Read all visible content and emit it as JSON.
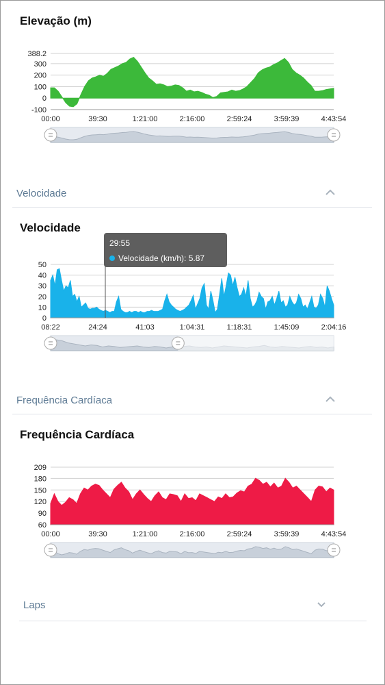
{
  "elevation": {
    "title": "Elevação (m)",
    "color": "#3cb93a",
    "chart_data": {
      "type": "area",
      "title": "Elevação (m)",
      "ylim": [
        -100,
        388.2
      ],
      "yticks": [
        "388.2",
        "300",
        "200",
        "100",
        "0",
        "-100"
      ],
      "ytick_values": [
        388.2,
        300,
        200,
        100,
        0,
        -100
      ],
      "xticks": [
        "00:00",
        "39:30",
        "1:21:00",
        "2:16:00",
        "2:59:24",
        "3:59:39",
        "4:43:54"
      ],
      "values": [
        90,
        90,
        60,
        10,
        -40,
        -70,
        -75,
        -50,
        30,
        100,
        150,
        175,
        185,
        200,
        190,
        215,
        250,
        265,
        280,
        300,
        310,
        340,
        355,
        320,
        270,
        220,
        175,
        150,
        120,
        125,
        115,
        100,
        105,
        115,
        110,
        90,
        60,
        70,
        55,
        60,
        50,
        35,
        25,
        5,
        15,
        45,
        50,
        55,
        70,
        60,
        65,
        80,
        100,
        135,
        170,
        220,
        245,
        260,
        270,
        290,
        305,
        325,
        345,
        310,
        250,
        220,
        200,
        175,
        140,
        110,
        60,
        60,
        65,
        75,
        80,
        85
      ]
    }
  },
  "velocidade_header": {
    "label": "Velocidade"
  },
  "velocidade": {
    "title": "Velocidade",
    "color": "#19b2ea",
    "tooltip": {
      "time": "29:55",
      "text": "Velocidade (km/h): 5.87"
    },
    "chart_data": {
      "type": "area",
      "title": "Velocidade",
      "ylim": [
        0,
        50
      ],
      "yticks": [
        "50",
        "40",
        "30",
        "20",
        "10",
        "0"
      ],
      "ytick_values": [
        50,
        40,
        30,
        20,
        10,
        0
      ],
      "xticks": [
        "08:22",
        "24:24",
        "41:03",
        "1:04:31",
        "1:18:31",
        "1:45:09",
        "2:04:16"
      ],
      "values": [
        35,
        40,
        30,
        45,
        46,
        35,
        25,
        30,
        28,
        35,
        20,
        22,
        15,
        20,
        10,
        12,
        14,
        9,
        8,
        9,
        9,
        10,
        8,
        7,
        6,
        7,
        6,
        5,
        6,
        6,
        15,
        20,
        8,
        6,
        5,
        5,
        6,
        5,
        6,
        6,
        5,
        6,
        5,
        5,
        6,
        6,
        7,
        6,
        6,
        6,
        7,
        8,
        16,
        22,
        15,
        12,
        10,
        8,
        7,
        6,
        7,
        8,
        10,
        12,
        16,
        21,
        8,
        13,
        18,
        28,
        32,
        12,
        8,
        25,
        16,
        5,
        8,
        22,
        37,
        20,
        30,
        42,
        40,
        30,
        38,
        28,
        20,
        22,
        28,
        20,
        35,
        18,
        10,
        12,
        16,
        24,
        20,
        18,
        8,
        15,
        16,
        20,
        12,
        18,
        25,
        14,
        16,
        10,
        12,
        20,
        15,
        12,
        14,
        22,
        18,
        10,
        12,
        8,
        14,
        20,
        10,
        9,
        12,
        22,
        18,
        10,
        30,
        25,
        18,
        12
      ]
    },
    "navigator_values": [
      28,
      32,
      30,
      26,
      24,
      22,
      20,
      22,
      21,
      18,
      20,
      19,
      17,
      18,
      19,
      20,
      18,
      17,
      19,
      18,
      16,
      18,
      17,
      19,
      20,
      18,
      17,
      18,
      16,
      18,
      20,
      19,
      18,
      17,
      16,
      18,
      19,
      21,
      18,
      17,
      19,
      18,
      17,
      16,
      18,
      19,
      17,
      18,
      16,
      18
    ]
  },
  "fc_header": {
    "label": "Frequência Cardíaca"
  },
  "fc": {
    "title": "Frequência Cardíaca",
    "color": "#ee1b46",
    "chart_data": {
      "type": "area",
      "title": "Frequência Cardíaca",
      "ylim": [
        60,
        209
      ],
      "yticks": [
        "209",
        "180",
        "150",
        "120",
        "90",
        "60"
      ],
      "ytick_values": [
        209,
        180,
        150,
        120,
        90,
        60
      ],
      "xticks": [
        "00:00",
        "39:30",
        "1:21:00",
        "2:16:00",
        "2:59:24",
        "3:59:39",
        "4:43:54"
      ],
      "values": [
        115,
        140,
        120,
        110,
        118,
        130,
        125,
        115,
        140,
        155,
        150,
        160,
        165,
        162,
        150,
        140,
        130,
        152,
        162,
        170,
        155,
        145,
        125,
        140,
        150,
        138,
        128,
        120,
        135,
        145,
        130,
        125,
        140,
        138,
        135,
        120,
        140,
        128,
        130,
        122,
        140,
        135,
        130,
        125,
        120,
        132,
        128,
        140,
        130,
        132,
        142,
        148,
        145,
        160,
        165,
        180,
        175,
        165,
        170,
        158,
        168,
        155,
        160,
        180,
        170,
        155,
        160,
        150,
        140,
        130,
        120,
        150,
        160,
        158,
        145,
        155,
        150
      ]
    }
  },
  "laps_header": {
    "label": "Laps"
  }
}
